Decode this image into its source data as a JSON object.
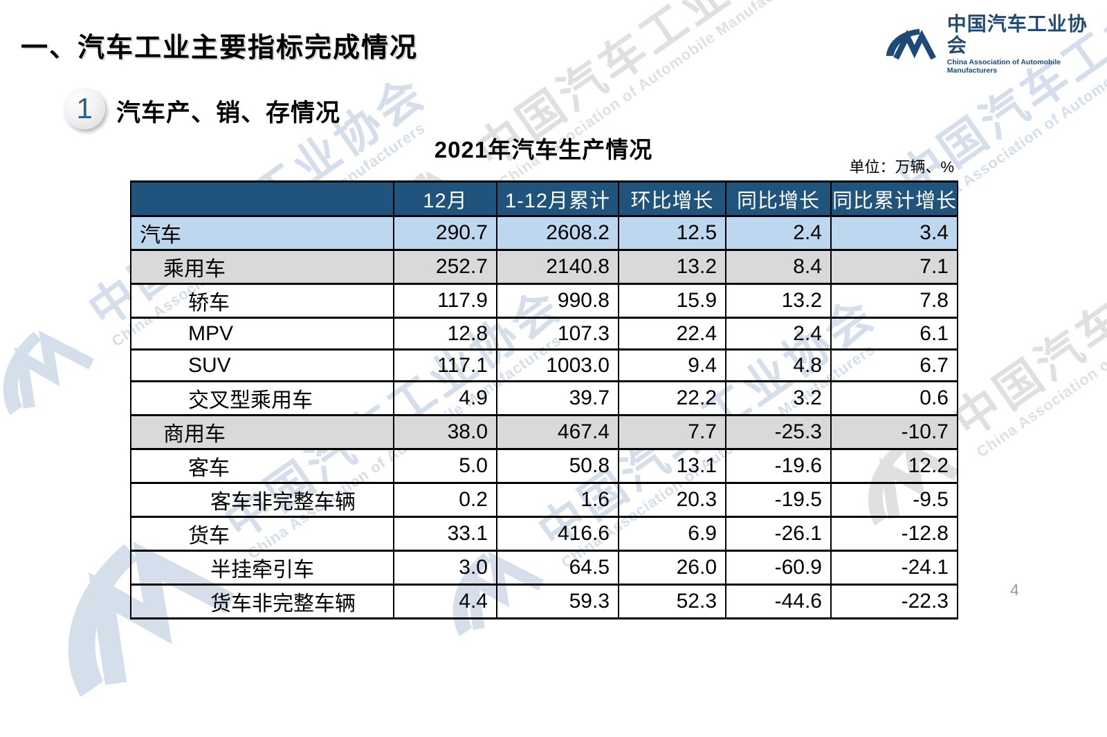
{
  "slide": {
    "title": "一、汽车工业主要指标完成情况",
    "section_number": "1",
    "section_title": "汽车产、销、存情况",
    "page_number": "4"
  },
  "logo": {
    "glyph": "caam-logo-icon",
    "name_cn": "中国汽车工业协会",
    "name_en": "China Association of Automobile Manufacturers"
  },
  "watermark": {
    "glyph": "caam-logo-icon",
    "text_cn": "中国汽车工业协会",
    "text_en": "China Association of Automobile Manufacturers"
  },
  "colors": {
    "header_bg": "#21547C",
    "row_highlight_blue": "#BDD7EE",
    "row_highlight_gray": "#D9D9D9",
    "logo_blue": "#1F4977",
    "border_black": "#000000"
  },
  "table": {
    "title": "2021年汽车生产情况",
    "unit_label": "单位：万辆、%",
    "columns": [
      "",
      "12月",
      "1-12月累计",
      "环比增长",
      "同比增长",
      "同比累计增长"
    ],
    "rows": [
      {
        "label": "汽车",
        "indent": 0,
        "style": "blue",
        "values": [
          "290.7",
          "2608.2",
          "12.5",
          "2.4",
          "3.4"
        ]
      },
      {
        "label": "乘用车",
        "indent": 1,
        "style": "gray",
        "values": [
          "252.7",
          "2140.8",
          "13.2",
          "8.4",
          "7.1"
        ]
      },
      {
        "label": "轿车",
        "indent": 2,
        "style": "white",
        "values": [
          "117.9",
          "990.8",
          "15.9",
          "13.2",
          "7.8"
        ]
      },
      {
        "label": "MPV",
        "indent": 2,
        "style": "white",
        "values": [
          "12.8",
          "107.3",
          "22.4",
          "2.4",
          "6.1"
        ]
      },
      {
        "label": "SUV",
        "indent": 2,
        "style": "white",
        "values": [
          "117.1",
          "1003.0",
          "9.4",
          "4.8",
          "6.7"
        ]
      },
      {
        "label": "交叉型乘用车",
        "indent": 2,
        "style": "white",
        "values": [
          "4.9",
          "39.7",
          "22.2",
          "3.2",
          "0.6"
        ]
      },
      {
        "label": "商用车",
        "indent": 1,
        "style": "gray",
        "values": [
          "38.0",
          "467.4",
          "7.7",
          "-25.3",
          "-10.7"
        ]
      },
      {
        "label": "客车",
        "indent": 2,
        "style": "white",
        "values": [
          "5.0",
          "50.8",
          "13.1",
          "-19.6",
          "12.2"
        ]
      },
      {
        "label": "客车非完整车辆",
        "indent": 3,
        "style": "white",
        "values": [
          "0.2",
          "1.6",
          "20.3",
          "-19.5",
          "-9.5"
        ]
      },
      {
        "label": "货车",
        "indent": 2,
        "style": "white",
        "values": [
          "33.1",
          "416.6",
          "6.9",
          "-26.1",
          "-12.8"
        ]
      },
      {
        "label": "半挂牵引车",
        "indent": 3,
        "style": "white",
        "values": [
          "3.0",
          "64.5",
          "26.0",
          "-60.9",
          "-24.1"
        ]
      },
      {
        "label": "货车非完整车辆",
        "indent": 3,
        "style": "white",
        "values": [
          "4.4",
          "59.3",
          "52.3",
          "-44.6",
          "-22.3"
        ]
      }
    ]
  }
}
